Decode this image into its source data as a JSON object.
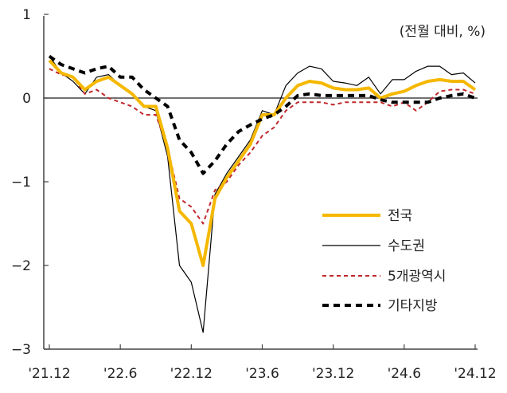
{
  "chart_data": {
    "type": "line",
    "unit_label": "(전월 대비, %)",
    "ylim": [
      -3,
      1
    ],
    "yticks": [
      1,
      0,
      -1,
      -2,
      -3
    ],
    "ytick_labels": [
      "1",
      "0",
      "−1",
      "−2",
      "−3"
    ],
    "x_tick_labels": [
      "'21.12",
      "'22.6",
      "'22.12",
      "'23.6",
      "'23.12",
      "'24.6",
      "'24.12"
    ],
    "x_tick_index": [
      0,
      6,
      12,
      18,
      24,
      30,
      36
    ],
    "zero_line": true,
    "grid": false,
    "legend_position": "right",
    "series": [
      {
        "name": "전국",
        "color": "#F5B800",
        "style": "solid-thick",
        "values": [
          0.45,
          0.3,
          0.25,
          0.1,
          0.2,
          0.25,
          0.15,
          0.05,
          -0.1,
          -0.1,
          -0.6,
          -1.35,
          -1.5,
          -2.0,
          -1.2,
          -0.95,
          -0.75,
          -0.55,
          -0.2,
          -0.2,
          0.0,
          0.15,
          0.2,
          0.18,
          0.12,
          0.1,
          0.1,
          0.12,
          0.0,
          0.05,
          0.08,
          0.15,
          0.2,
          0.22,
          0.2,
          0.2,
          0.1
        ]
      },
      {
        "name": "수도권",
        "color": "#000000",
        "style": "solid-thin",
        "values": [
          0.5,
          0.3,
          0.2,
          0.05,
          0.25,
          0.28,
          0.15,
          0.05,
          -0.1,
          -0.15,
          -0.7,
          -2.0,
          -2.2,
          -2.8,
          -1.15,
          -0.9,
          -0.7,
          -0.5,
          -0.15,
          -0.2,
          0.15,
          0.3,
          0.38,
          0.35,
          0.2,
          0.18,
          0.15,
          0.25,
          0.05,
          0.22,
          0.22,
          0.32,
          0.38,
          0.38,
          0.28,
          0.3,
          0.18
        ]
      },
      {
        "name": "5개광역시",
        "color": "#C0282D",
        "style": "dashed",
        "values": [
          0.35,
          0.28,
          0.25,
          0.05,
          0.1,
          0.0,
          -0.05,
          -0.1,
          -0.2,
          -0.2,
          -0.6,
          -1.2,
          -1.3,
          -1.5,
          -1.1,
          -1.0,
          -0.8,
          -0.65,
          -0.45,
          -0.35,
          -0.15,
          -0.05,
          -0.05,
          -0.05,
          -0.08,
          -0.05,
          -0.05,
          -0.05,
          -0.05,
          -0.1,
          -0.05,
          -0.15,
          -0.05,
          0.08,
          0.1,
          0.1,
          0.05
        ]
      },
      {
        "name": "기타지방",
        "color": "#000000",
        "style": "dashed-thick",
        "values": [
          0.5,
          0.4,
          0.35,
          0.3,
          0.35,
          0.38,
          0.25,
          0.25,
          0.1,
          0.0,
          -0.1,
          -0.5,
          -0.65,
          -0.9,
          -0.75,
          -0.55,
          -0.4,
          -0.32,
          -0.25,
          -0.2,
          -0.1,
          0.03,
          0.05,
          0.03,
          0.03,
          0.03,
          0.03,
          0.03,
          -0.02,
          -0.05,
          -0.05,
          -0.05,
          -0.05,
          0.0,
          0.03,
          0.05,
          0.0
        ]
      }
    ]
  }
}
